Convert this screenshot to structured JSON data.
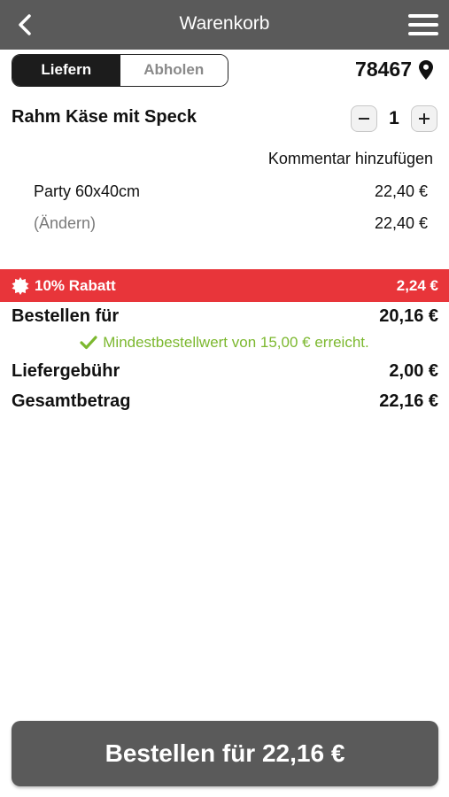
{
  "header": {
    "title": "Warenkorb",
    "back_icon": "chevron-left-icon",
    "menu_icon": "hamburger-menu-icon"
  },
  "delivery_toggle": {
    "options": [
      "Liefern",
      "Abholen"
    ],
    "selected": "Liefern"
  },
  "location": {
    "postal_code": "78467",
    "icon": "map-pin-icon"
  },
  "cart": {
    "items": [
      {
        "name": "Rahm Käse mit Speck",
        "quantity": "1",
        "comment_link": "Kommentar hinzufügen",
        "size_label": "Party 60x40cm",
        "size_price": "22,40 €",
        "change_label": "(Ändern)",
        "total_price": "22,40 €"
      }
    ]
  },
  "discount": {
    "label": "10% Rabatt",
    "amount": "2,24 €",
    "color": "#e8353a"
  },
  "summary": {
    "order_for_label": "Bestellen für",
    "order_for_value": "20,16 €",
    "minimum_text": "Mindestbestellwert von 15,00 € erreicht.",
    "minimum_color": "#7cb82f",
    "delivery_fee_label": "Liefergebühr",
    "delivery_fee_value": "2,00 €",
    "total_label": "Gesamtbetrag",
    "total_value": "22,16 €"
  },
  "checkout_button": {
    "label": "Bestellen für 22,16 €"
  },
  "colors": {
    "header_bg": "#5a5a5a",
    "button_bg": "#5a5a5a"
  }
}
